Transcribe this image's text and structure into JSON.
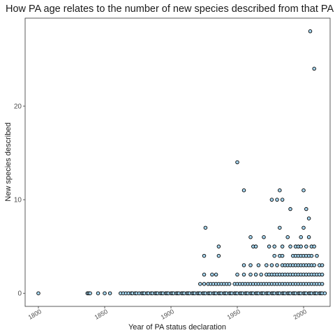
{
  "chart_data": {
    "type": "scatter",
    "title": "How PA age relates to the number of new species described from that PA",
    "xlabel": "Year of PA status declaration",
    "ylabel": "New species described",
    "xlim": [
      1790,
      2020
    ],
    "ylim": [
      -1.4,
      29.4
    ],
    "xticks": [
      "1800",
      "1850",
      "1900",
      "1950",
      "2000"
    ],
    "xtick_values": [
      1800,
      1850,
      1900,
      1950,
      2000
    ],
    "yticks": [
      "0",
      "10",
      "20"
    ],
    "ytick_values": [
      0,
      10,
      20
    ],
    "grid": false,
    "point_fill": "#a6d6f0",
    "point_stroke": "#000000",
    "points": [
      [
        1800,
        0
      ],
      [
        1837,
        0
      ],
      [
        1838,
        0
      ],
      [
        1839,
        0
      ],
      [
        1845,
        0
      ],
      [
        1850,
        0
      ],
      [
        1854,
        0
      ],
      [
        1862,
        0
      ],
      [
        1864,
        0
      ],
      [
        1866,
        0
      ],
      [
        1868,
        0
      ],
      [
        1870,
        0
      ],
      [
        1871,
        0
      ],
      [
        1873,
        0
      ],
      [
        1874,
        0
      ],
      [
        1876,
        0
      ],
      [
        1878,
        0
      ],
      [
        1879,
        0
      ],
      [
        1880,
        0
      ],
      [
        1882,
        0
      ],
      [
        1883,
        0
      ],
      [
        1885,
        0
      ],
      [
        1886,
        0
      ],
      [
        1888,
        0
      ],
      [
        1889,
        0
      ],
      [
        1890,
        0
      ],
      [
        1892,
        0
      ],
      [
        1893,
        0
      ],
      [
        1894,
        0
      ],
      [
        1896,
        0
      ],
      [
        1897,
        0
      ],
      [
        1898,
        0
      ],
      [
        1900,
        0
      ],
      [
        1901,
        0
      ],
      [
        1902,
        0
      ],
      [
        1904,
        0
      ],
      [
        1905,
        0
      ],
      [
        1906,
        0
      ],
      [
        1908,
        0
      ],
      [
        1909,
        0
      ],
      [
        1910,
        0
      ],
      [
        1912,
        0
      ],
      [
        1913,
        0
      ],
      [
        1914,
        0
      ],
      [
        1916,
        0
      ],
      [
        1917,
        0
      ],
      [
        1918,
        0
      ],
      [
        1920,
        0
      ],
      [
        1921,
        0
      ],
      [
        1922,
        0
      ],
      [
        1924,
        0
      ],
      [
        1925,
        0
      ],
      [
        1926,
        0
      ],
      [
        1928,
        0
      ],
      [
        1929,
        0
      ],
      [
        1930,
        0
      ],
      [
        1932,
        0
      ],
      [
        1933,
        0
      ],
      [
        1934,
        0
      ],
      [
        1936,
        0
      ],
      [
        1937,
        0
      ],
      [
        1938,
        0
      ],
      [
        1940,
        0
      ],
      [
        1941,
        0
      ],
      [
        1942,
        0
      ],
      [
        1944,
        0
      ],
      [
        1945,
        0
      ],
      [
        1946,
        0
      ],
      [
        1948,
        0
      ],
      [
        1949,
        0
      ],
      [
        1950,
        0
      ],
      [
        1952,
        0
      ],
      [
        1953,
        0
      ],
      [
        1954,
        0
      ],
      [
        1956,
        0
      ],
      [
        1957,
        0
      ],
      [
        1958,
        0
      ],
      [
        1960,
        0
      ],
      [
        1961,
        0
      ],
      [
        1962,
        0
      ],
      [
        1964,
        0
      ],
      [
        1965,
        0
      ],
      [
        1966,
        0
      ],
      [
        1968,
        0
      ],
      [
        1969,
        0
      ],
      [
        1970,
        0
      ],
      [
        1972,
        0
      ],
      [
        1973,
        0
      ],
      [
        1974,
        0
      ],
      [
        1976,
        0
      ],
      [
        1977,
        0
      ],
      [
        1978,
        0
      ],
      [
        1980,
        0
      ],
      [
        1981,
        0
      ],
      [
        1982,
        0
      ],
      [
        1984,
        0
      ],
      [
        1985,
        0
      ],
      [
        1986,
        0
      ],
      [
        1988,
        0
      ],
      [
        1989,
        0
      ],
      [
        1990,
        0
      ],
      [
        1992,
        0
      ],
      [
        1993,
        0
      ],
      [
        1994,
        0
      ],
      [
        1996,
        0
      ],
      [
        1997,
        0
      ],
      [
        1998,
        0
      ],
      [
        2000,
        0
      ],
      [
        2001,
        0
      ],
      [
        2002,
        0
      ],
      [
        2004,
        0
      ],
      [
        2005,
        0
      ],
      [
        2006,
        0
      ],
      [
        2008,
        0
      ],
      [
        2009,
        0
      ],
      [
        2010,
        0
      ],
      [
        2012,
        0
      ],
      [
        2013,
        0
      ],
      [
        2014,
        0
      ],
      [
        2016,
        0
      ],
      [
        1922,
        1
      ],
      [
        1925,
        1
      ],
      [
        1928,
        1
      ],
      [
        1930,
        1
      ],
      [
        1932,
        1
      ],
      [
        1934,
        1
      ],
      [
        1936,
        1
      ],
      [
        1938,
        1
      ],
      [
        1940,
        1
      ],
      [
        1942,
        1
      ],
      [
        1944,
        1
      ],
      [
        1948,
        1
      ],
      [
        1950,
        1
      ],
      [
        1952,
        1
      ],
      [
        1954,
        1
      ],
      [
        1956,
        1
      ],
      [
        1958,
        1
      ],
      [
        1960,
        1
      ],
      [
        1962,
        1
      ],
      [
        1964,
        1
      ],
      [
        1966,
        1
      ],
      [
        1968,
        1
      ],
      [
        1970,
        1
      ],
      [
        1972,
        1
      ],
      [
        1974,
        1
      ],
      [
        1976,
        1
      ],
      [
        1978,
        1
      ],
      [
        1980,
        1
      ],
      [
        1982,
        1
      ],
      [
        1984,
        1
      ],
      [
        1986,
        1
      ],
      [
        1988,
        1
      ],
      [
        1990,
        1
      ],
      [
        1992,
        1
      ],
      [
        1994,
        1
      ],
      [
        1996,
        1
      ],
      [
        1998,
        1
      ],
      [
        2000,
        1
      ],
      [
        2002,
        1
      ],
      [
        2004,
        1
      ],
      [
        2006,
        1
      ],
      [
        2008,
        1
      ],
      [
        2010,
        1
      ],
      [
        2012,
        1
      ],
      [
        2014,
        1
      ],
      [
        1925,
        2
      ],
      [
        1931,
        2
      ],
      [
        1934,
        2
      ],
      [
        1950,
        2
      ],
      [
        1955,
        2
      ],
      [
        1960,
        2
      ],
      [
        1964,
        2
      ],
      [
        1968,
        2
      ],
      [
        1972,
        2
      ],
      [
        1974,
        2
      ],
      [
        1976,
        2
      ],
      [
        1978,
        2
      ],
      [
        1980,
        2
      ],
      [
        1982,
        2
      ],
      [
        1984,
        2
      ],
      [
        1986,
        2
      ],
      [
        1988,
        2
      ],
      [
        1990,
        2
      ],
      [
        1992,
        2
      ],
      [
        1994,
        2
      ],
      [
        1996,
        2
      ],
      [
        1998,
        2
      ],
      [
        2000,
        2
      ],
      [
        2002,
        2
      ],
      [
        2004,
        2
      ],
      [
        2006,
        2
      ],
      [
        2008,
        2
      ],
      [
        2010,
        2
      ],
      [
        2012,
        2
      ],
      [
        2014,
        2
      ],
      [
        1955,
        3
      ],
      [
        1960,
        3
      ],
      [
        1966,
        3
      ],
      [
        1972,
        3
      ],
      [
        1976,
        3
      ],
      [
        1980,
        3
      ],
      [
        1984,
        3
      ],
      [
        1986,
        3
      ],
      [
        1988,
        3
      ],
      [
        1990,
        3
      ],
      [
        1992,
        3
      ],
      [
        1994,
        3
      ],
      [
        1996,
        3
      ],
      [
        1998,
        3
      ],
      [
        2000,
        3
      ],
      [
        2002,
        3
      ],
      [
        2004,
        3
      ],
      [
        2006,
        3
      ],
      [
        2008,
        3
      ],
      [
        2012,
        3
      ],
      [
        2014,
        3
      ],
      [
        1925,
        4
      ],
      [
        1936,
        4
      ],
      [
        1978,
        4
      ],
      [
        1982,
        4
      ],
      [
        1984,
        4
      ],
      [
        1992,
        4
      ],
      [
        1994,
        4
      ],
      [
        1996,
        4
      ],
      [
        1998,
        4
      ],
      [
        2000,
        4
      ],
      [
        2002,
        4
      ],
      [
        2004,
        4
      ],
      [
        2006,
        4
      ],
      [
        2010,
        4
      ],
      [
        1936,
        5
      ],
      [
        1962,
        5
      ],
      [
        1964,
        5
      ],
      [
        1974,
        5
      ],
      [
        1978,
        5
      ],
      [
        1984,
        5
      ],
      [
        1990,
        5
      ],
      [
        1994,
        5
      ],
      [
        1996,
        5
      ],
      [
        1998,
        5
      ],
      [
        2002,
        5
      ],
      [
        2006,
        5
      ],
      [
        2008,
        5
      ],
      [
        1960,
        6
      ],
      [
        1970,
        6
      ],
      [
        1988,
        6
      ],
      [
        1998,
        6
      ],
      [
        2004,
        6
      ],
      [
        1926,
        7
      ],
      [
        1982,
        7
      ],
      [
        2000,
        7
      ],
      [
        2004,
        8
      ],
      [
        1990,
        9
      ],
      [
        2002,
        9
      ],
      [
        1976,
        10
      ],
      [
        1980,
        10
      ],
      [
        1984,
        10
      ],
      [
        1955,
        11
      ],
      [
        1982,
        11
      ],
      [
        2000,
        11
      ],
      [
        1950,
        14
      ],
      [
        2008,
        24
      ],
      [
        2005,
        28
      ]
    ]
  }
}
